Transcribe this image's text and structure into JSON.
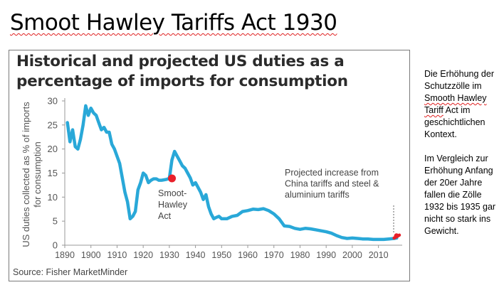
{
  "slide": {
    "title": "Smoot Hawley Tariffs Act 1930",
    "side_paragraph_1": "Die Erhöhung der Schutzzölle im Smooth Hawley Tariff Act im geschichtlichen Kontext.",
    "side_paragraph_2": "Im Vergleich zur Erhöhung Anfang der 20er  Jahre fallen die Zölle 1932 bis 1935 gar nicht so stark ins Gewicht."
  },
  "chart_data": {
    "type": "line",
    "title": "Historical and projected US duties as a percentage of imports for consumption",
    "xlabel": "",
    "ylabel": "US duties collected as % of imports for consumption",
    "source": "Source: Fisher MarketMinder",
    "xlim": [
      1890,
      2018
    ],
    "ylim": [
      0,
      30
    ],
    "xticks": [
      1890,
      1900,
      1910,
      1920,
      1930,
      1940,
      1950,
      1960,
      1970,
      1980,
      1990,
      2000,
      2010
    ],
    "yticks": [
      0,
      5,
      10,
      15,
      20,
      25,
      30
    ],
    "grid": false,
    "line_color": "#29a8d8",
    "projection_color": "#e8202a",
    "series": [
      {
        "name": "",
        "x": [
          1891,
          1892,
          1893,
          1894,
          1895,
          1896,
          1897,
          1898,
          1899,
          1900,
          1901,
          1902,
          1903,
          1904,
          1905,
          1906,
          1907,
          1908,
          1909,
          1910,
          1911,
          1912,
          1913,
          1914,
          1915,
          1916,
          1917,
          1918,
          1919,
          1920,
          1921,
          1922,
          1923,
          1924,
          1925,
          1926,
          1927,
          1928,
          1929,
          1930,
          1931,
          1932,
          1933,
          1934,
          1935,
          1936,
          1937,
          1938,
          1939,
          1940,
          1941,
          1942,
          1943,
          1944,
          1945,
          1946,
          1947,
          1948,
          1949,
          1950,
          1952,
          1954,
          1956,
          1958,
          1960,
          1962,
          1964,
          1966,
          1968,
          1970,
          1972,
          1974,
          1976,
          1978,
          1980,
          1982,
          1984,
          1986,
          1988,
          1990,
          1992,
          1994,
          1996,
          1998,
          2000,
          2002,
          2004,
          2006,
          2008,
          2010,
          2012,
          2014,
          2016,
          2017
        ],
        "values": [
          25.5,
          21.5,
          24.0,
          20.5,
          20.0,
          22.0,
          25.0,
          29.0,
          27.0,
          28.5,
          27.5,
          27.0,
          25.5,
          24.0,
          24.5,
          23.5,
          23.5,
          21.0,
          20.0,
          18.5,
          17.0,
          14.0,
          11.0,
          9.0,
          5.5,
          6.0,
          7.0,
          11.5,
          13.0,
          15.0,
          14.5,
          13.0,
          13.5,
          13.8,
          13.8,
          13.5,
          13.5,
          13.6,
          13.7,
          13.9,
          17.7,
          19.5,
          18.5,
          17.5,
          16.5,
          16.0,
          15.0,
          14.0,
          12.5,
          13.0,
          12.0,
          11.0,
          9.5,
          10.5,
          8.0,
          6.5,
          5.5,
          5.8,
          6.0,
          5.5,
          5.5,
          6.0,
          6.2,
          7.0,
          7.2,
          7.5,
          7.4,
          7.6,
          7.2,
          6.5,
          5.5,
          4.0,
          3.9,
          3.5,
          3.3,
          3.5,
          3.4,
          3.2,
          3.0,
          2.8,
          2.5,
          2.0,
          1.6,
          1.4,
          1.5,
          1.4,
          1.3,
          1.3,
          1.2,
          1.2,
          1.2,
          1.3,
          1.4,
          1.5
        ]
      }
    ],
    "projection": {
      "x": [
        2016,
        2018
      ],
      "values": [
        1.5,
        2.1
      ]
    },
    "annotations": [
      {
        "text": "Smoot-Hawley Act",
        "x": 1931,
        "y": 13.9,
        "lines": [
          "Smoot-",
          "Hawley",
          "Act"
        ]
      },
      {
        "text": "Projected increase from China tariffs and steel & aluminium tariffs",
        "x": 2018,
        "y": 2.1,
        "lines": [
          "Projected increase from",
          "China tariffs and steel &",
          "aluminium tariffs"
        ]
      }
    ]
  }
}
